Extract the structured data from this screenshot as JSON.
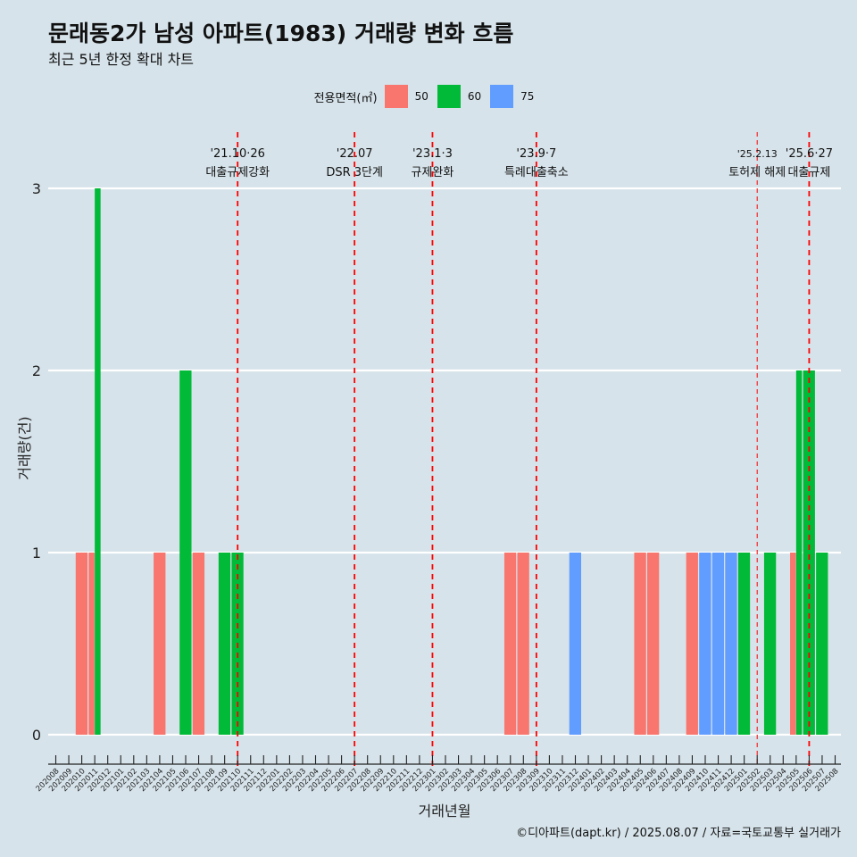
{
  "title": "문래동2가 남성 아파트(1983) 거래량 변화 흐름",
  "subtitle": "최근 5년 한정 확대 차트",
  "caption": "©디아파트(dapt.kr) / 2025.08.07 / 자료=국토교통부 실거래가",
  "legend": {
    "title": "전용면적(㎡)",
    "items": [
      {
        "label": "50",
        "color": "#f8766d"
      },
      {
        "label": "60",
        "color": "#00ba38"
      },
      {
        "label": "75",
        "color": "#619cff"
      }
    ]
  },
  "chart_data": {
    "type": "bar",
    "title": "문래동2가 남성 아파트(1983) 거래량 변화 흐름",
    "xlabel": "거래년월",
    "ylabel": "거래량(건)",
    "ylim": [
      0,
      3
    ],
    "yticks": [
      "0",
      "1",
      "2",
      "3"
    ],
    "categories": [
      "202008",
      "202009",
      "202010",
      "202011",
      "202012",
      "202101",
      "202102",
      "202103",
      "202104",
      "202105",
      "202106",
      "202107",
      "202108",
      "202109",
      "202110",
      "202111",
      "202112",
      "202201",
      "202202",
      "202203",
      "202204",
      "202205",
      "202206",
      "202207",
      "202208",
      "202209",
      "202210",
      "202211",
      "202212",
      "202301",
      "202302",
      "202303",
      "202304",
      "202305",
      "202306",
      "202307",
      "202308",
      "202309",
      "202310",
      "202311",
      "202312",
      "202401",
      "202402",
      "202403",
      "202404",
      "202405",
      "202406",
      "202407",
      "202408",
      "202409",
      "202410",
      "202411",
      "202412",
      "202501",
      "202502",
      "202503",
      "202504",
      "202505",
      "202506",
      "202507",
      "202508"
    ],
    "bars": [
      {
        "month": "202010",
        "area": "50",
        "value": 1
      },
      {
        "month": "202011",
        "area": "50",
        "value": 1
      },
      {
        "month": "202011",
        "area": "60",
        "value": 3
      },
      {
        "month": "202104",
        "area": "50",
        "value": 1
      },
      {
        "month": "202106",
        "area": "60",
        "value": 2
      },
      {
        "month": "202107",
        "area": "50",
        "value": 1
      },
      {
        "month": "202109",
        "area": "60",
        "value": 1
      },
      {
        "month": "202110",
        "area": "60",
        "value": 1
      },
      {
        "month": "202307",
        "area": "50",
        "value": 1
      },
      {
        "month": "202308",
        "area": "50",
        "value": 1
      },
      {
        "month": "202312",
        "area": "75",
        "value": 1
      },
      {
        "month": "202405",
        "area": "50",
        "value": 1
      },
      {
        "month": "202406",
        "area": "50",
        "value": 1
      },
      {
        "month": "202409",
        "area": "50",
        "value": 1
      },
      {
        "month": "202410",
        "area": "75",
        "value": 1
      },
      {
        "month": "202411",
        "area": "75",
        "value": 1
      },
      {
        "month": "202412",
        "area": "75",
        "value": 1
      },
      {
        "month": "202501",
        "area": "60",
        "value": 1
      },
      {
        "month": "202503",
        "area": "60",
        "value": 1
      },
      {
        "month": "202505",
        "area": "50",
        "value": 1
      },
      {
        "month": "202505",
        "area": "60",
        "value": 2
      },
      {
        "month": "202506",
        "area": "60",
        "value": 2
      },
      {
        "month": "202507",
        "area": "60",
        "value": 1
      }
    ],
    "events": [
      {
        "month": "202110",
        "date": "'21.10·26",
        "label": "대출규제강화",
        "style": "bold"
      },
      {
        "month": "202207",
        "date": "'22.07",
        "label": "DSR 3단계",
        "style": "bold"
      },
      {
        "month": "202301",
        "date": "'23.1·3",
        "label": "규제완화",
        "style": "bold"
      },
      {
        "month": "202309",
        "date": "'23.9·7",
        "label": "특례대출축소",
        "style": "bold"
      },
      {
        "month": "202502",
        "date": "'25.2.13",
        "label": "토허제 해제",
        "style": "thin"
      },
      {
        "month": "202506",
        "date": "'25.6·27",
        "label": "대출규제",
        "style": "bold"
      }
    ]
  }
}
